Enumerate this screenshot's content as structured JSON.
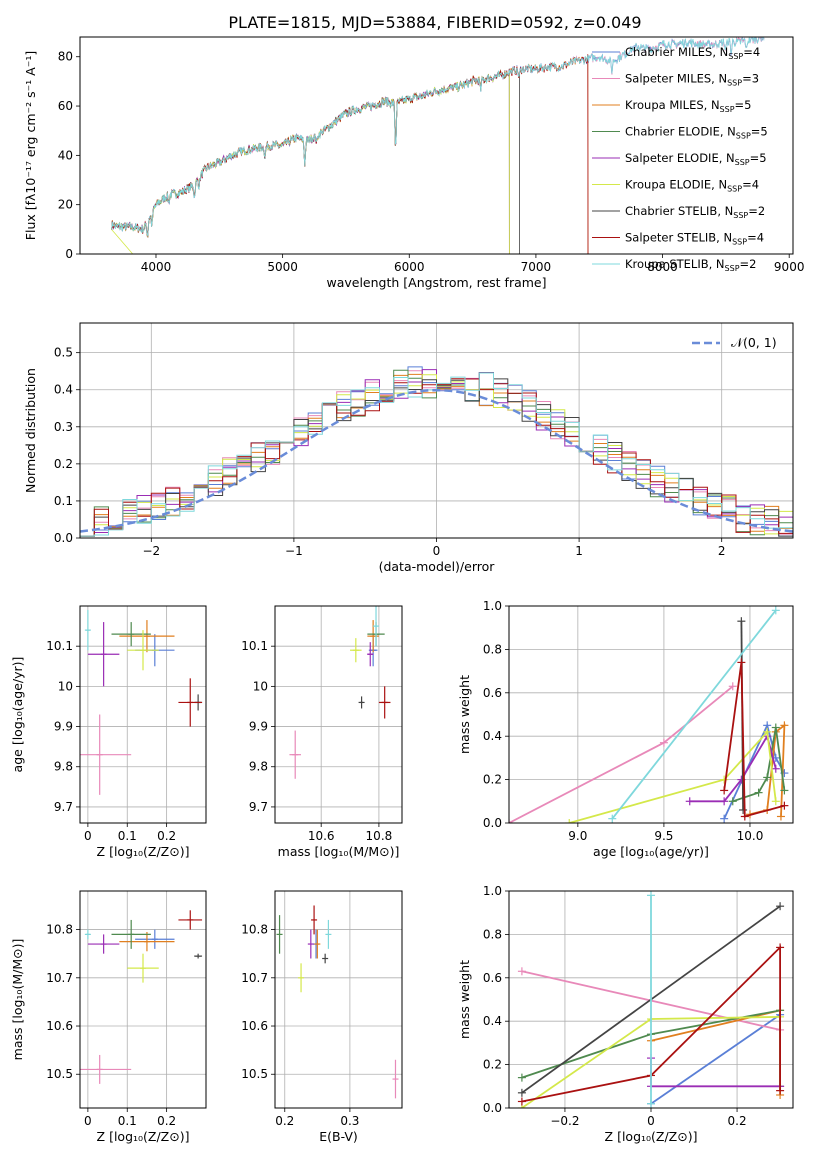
{
  "figure_title": "PLATE=1815, MJD=53884, FIBERID=0592, z=0.049",
  "colors": {
    "models": [
      "#5a7fd6",
      "#e889b9",
      "#e07f1f",
      "#4f8a4f",
      "#9a2db5",
      "#d4e84a",
      "#444444",
      "#aa1111",
      "#7fd8dc"
    ],
    "normal": "#6a8cd8"
  },
  "models": [
    {
      "name": "Chabrier MILES",
      "nssp": "4"
    },
    {
      "name": "Salpeter MILES",
      "nssp": "3"
    },
    {
      "name": "Kroupa MILES",
      "nssp": "5"
    },
    {
      "name": "Chabrier ELODIE",
      "nssp": "5"
    },
    {
      "name": "Salpeter ELODIE",
      "nssp": "5"
    },
    {
      "name": "Kroupa ELODIE",
      "nssp": "4"
    },
    {
      "name": "Chabrier STELIB",
      "nssp": "2"
    },
    {
      "name": "Salpeter STELIB",
      "nssp": "4"
    },
    {
      "name": "Kroupa STELIB",
      "nssp": "2"
    }
  ],
  "legend_nssp_prefix": "N",
  "legend_nssp_sub": "SSP",
  "chart_data": [
    {
      "id": "spectrum",
      "type": "line",
      "xlabel": "wavelength [Angstrom, rest frame]",
      "ylabel": "Flux [fλ10⁻¹⁷ erg cm⁻² s⁻¹ A⁻¹]",
      "xlim": [
        3400,
        9030
      ],
      "ylim": [
        0,
        88
      ],
      "xticks": [
        4000,
        5000,
        6000,
        7000,
        8000,
        9000
      ],
      "yticks": [
        0,
        20,
        40,
        60,
        80
      ],
      "grid": false,
      "legend": "top-right",
      "continuum": [
        [
          3650,
          12
        ],
        [
          3700,
          11
        ],
        [
          3800,
          11
        ],
        [
          3900,
          10
        ],
        [
          3950,
          15
        ],
        [
          4000,
          20
        ],
        [
          4100,
          24
        ],
        [
          4200,
          25
        ],
        [
          4300,
          28
        ],
        [
          4400,
          35
        ],
        [
          4500,
          37
        ],
        [
          4600,
          40
        ],
        [
          4700,
          42
        ],
        [
          4800,
          43
        ],
        [
          4900,
          44
        ],
        [
          5000,
          44
        ],
        [
          5100,
          47
        ],
        [
          5200,
          46
        ],
        [
          5300,
          49
        ],
        [
          5400,
          53
        ],
        [
          5500,
          57
        ],
        [
          5600,
          59
        ],
        [
          5700,
          60
        ],
        [
          5800,
          62
        ],
        [
          5900,
          61
        ],
        [
          6000,
          63
        ],
        [
          6100,
          64
        ],
        [
          6200,
          66
        ],
        [
          6300,
          67
        ],
        [
          6400,
          68
        ],
        [
          6500,
          70
        ],
        [
          6600,
          71
        ],
        [
          6700,
          72
        ],
        [
          6800,
          74
        ],
        [
          6900,
          75
        ],
        [
          7000,
          75
        ],
        [
          7100,
          76
        ],
        [
          7200,
          76
        ],
        [
          7300,
          78
        ],
        [
          7400,
          79
        ],
        [
          7500,
          80
        ],
        [
          7600,
          78
        ],
        [
          7700,
          81
        ],
        [
          7800,
          84
        ],
        [
          7900,
          83
        ],
        [
          8000,
          85
        ],
        [
          8100,
          85
        ],
        [
          8200,
          86
        ],
        [
          8300,
          85
        ],
        [
          8400,
          85
        ],
        [
          8500,
          86
        ],
        [
          8600,
          86
        ],
        [
          8700,
          87
        ],
        [
          8800,
          88
        ]
      ],
      "absorption_lines": [
        [
          3933,
          6
        ],
        [
          3968,
          5
        ],
        [
          4101,
          3
        ],
        [
          4304,
          5
        ],
        [
          4340,
          3
        ],
        [
          4861,
          4
        ],
        [
          5175,
          10
        ],
        [
          5270,
          3
        ],
        [
          5892,
          18
        ],
        [
          6563,
          4
        ],
        [
          6867,
          3
        ],
        [
          7600,
          4
        ],
        [
          8498,
          3
        ],
        [
          8542,
          4
        ],
        [
          8662,
          4
        ]
      ],
      "model_ranges": [
        [
          3650,
          8800
        ],
        [
          3650,
          8800
        ],
        [
          3650,
          7410
        ],
        [
          3650,
          6790
        ],
        [
          3650,
          6790
        ],
        [
          3650,
          6790
        ],
        [
          3650,
          6870
        ],
        [
          3650,
          7410
        ],
        [
          3650,
          8800
        ]
      ]
    },
    {
      "id": "residual-distribution",
      "type": "histogram",
      "xlabel": "(data-model)/error",
      "ylabel": "Normed distribution",
      "xlim": [
        -2.5,
        2.5
      ],
      "ylim": [
        0,
        0.58
      ],
      "xticks": [
        -2,
        -1,
        0,
        1,
        2
      ],
      "yticks": [
        0.0,
        0.1,
        0.2,
        0.3,
        0.4,
        0.5
      ],
      "grid": true,
      "legend": "top-right",
      "reference": {
        "label": "𝒩(0, 1)",
        "mean": 0,
        "sigma": 1
      },
      "bin_width": 0.1
    },
    {
      "id": "age-vs-Z",
      "type": "scatter",
      "xlabel": "Z [log₁₀(Z/Z⊙)]",
      "ylabel": "age  [log₁₀(age/yr)]",
      "xlim": [
        -0.02,
        0.3
      ],
      "ylim": [
        9.66,
        10.2
      ],
      "xticks": [
        0.0,
        0.1,
        0.2
      ],
      "yticks": [
        9.7,
        9.8,
        9.9,
        10.0,
        10.1
      ],
      "points": [
        {
          "model": 0,
          "x": 0.17,
          "y": 10.09,
          "xerr": 0.05,
          "yerr": 0.04
        },
        {
          "model": 1,
          "x": 0.03,
          "y": 9.83,
          "xerr": 0.08,
          "yerr": 0.1
        },
        {
          "model": 2,
          "x": 0.15,
          "y": 10.125,
          "xerr": 0.07,
          "yerr": 0.04
        },
        {
          "model": 3,
          "x": 0.11,
          "y": 10.13,
          "xerr": 0.05,
          "yerr": 0.03
        },
        {
          "model": 4,
          "x": 0.04,
          "y": 10.08,
          "xerr": 0.04,
          "yerr": 0.08
        },
        {
          "model": 5,
          "x": 0.14,
          "y": 10.09,
          "xerr": 0.04,
          "yerr": 0.05
        },
        {
          "model": 6,
          "x": 0.28,
          "y": 9.96,
          "xerr": 0.01,
          "yerr": 0.02
        },
        {
          "model": 7,
          "x": 0.26,
          "y": 9.96,
          "xerr": 0.03,
          "yerr": 0.06
        },
        {
          "model": 8,
          "x": 0.0,
          "y": 10.14,
          "xerr": 0.005,
          "yerr": 0.05
        }
      ]
    },
    {
      "id": "age-vs-mass",
      "type": "scatter",
      "xlabel": "mass [log₁₀(M/M⊙)]",
      "ylabel": "",
      "xlim": [
        10.44,
        10.88
      ],
      "ylim": [
        9.66,
        10.2
      ],
      "xticks": [
        10.6,
        10.8
      ],
      "yticks": [
        9.7,
        9.8,
        9.9,
        10.0,
        10.1
      ],
      "points": [
        {
          "model": 0,
          "x": 10.78,
          "y": 10.09,
          "xerr": 0.015,
          "yerr": 0.04
        },
        {
          "model": 1,
          "x": 10.51,
          "y": 9.83,
          "xerr": 0.02,
          "yerr": 0.06
        },
        {
          "model": 2,
          "x": 10.78,
          "y": 10.125,
          "xerr": 0.02,
          "yerr": 0.04
        },
        {
          "model": 3,
          "x": 10.79,
          "y": 10.13,
          "xerr": 0.03,
          "yerr": 0.03
        },
        {
          "model": 4,
          "x": 10.77,
          "y": 10.08,
          "xerr": 0.01,
          "yerr": 0.03
        },
        {
          "model": 5,
          "x": 10.72,
          "y": 10.09,
          "xerr": 0.02,
          "yerr": 0.03
        },
        {
          "model": 6,
          "x": 10.74,
          "y": 9.96,
          "xerr": 0.005,
          "yerr": 0.015
        },
        {
          "model": 7,
          "x": 10.82,
          "y": 9.96,
          "xerr": 0.02,
          "yerr": 0.04
        },
        {
          "model": 8,
          "x": 10.79,
          "y": 10.15,
          "xerr": 0.005,
          "yerr": 0.05
        }
      ]
    },
    {
      "id": "mass-weight-vs-age",
      "type": "line",
      "xlabel": "age  [log₁₀(age/yr)]",
      "ylabel": "mass weight",
      "xlim": [
        8.6,
        10.25
      ],
      "ylim": [
        0,
        1.0
      ],
      "xticks": [
        9.0,
        9.5,
        10.0
      ],
      "yticks": [
        0.0,
        0.2,
        0.4,
        0.6,
        0.8,
        1.0
      ],
      "series": [
        {
          "model": 0,
          "x": [
            9.85,
            10.1,
            10.15,
            10.2
          ],
          "y": [
            0.02,
            0.45,
            0.3,
            0.23
          ]
        },
        {
          "model": 1,
          "x": [
            8.6,
            9.5,
            9.9
          ],
          "y": [
            0.0,
            0.37,
            0.63
          ]
        },
        {
          "model": 2,
          "x": [
            10.0,
            10.1,
            10.15,
            10.2,
            10.18
          ],
          "y": [
            0.04,
            0.06,
            0.42,
            0.45,
            0.03
          ]
        },
        {
          "model": 3,
          "x": [
            9.9,
            10.05,
            10.1,
            10.15,
            10.2
          ],
          "y": [
            0.1,
            0.14,
            0.21,
            0.44,
            0.15
          ]
        },
        {
          "model": 4,
          "x": [
            9.65,
            9.85,
            9.95,
            10.1,
            10.15
          ],
          "y": [
            0.1,
            0.1,
            0.2,
            0.4,
            0.25
          ]
        },
        {
          "model": 5,
          "x": [
            8.95,
            9.85,
            10.1,
            10.15
          ],
          "y": [
            0.0,
            0.2,
            0.42,
            0.1
          ]
        },
        {
          "model": 6,
          "x": [
            9.95,
            9.96
          ],
          "y": [
            0.93,
            0.06
          ]
        },
        {
          "model": 7,
          "x": [
            9.85,
            9.95,
            9.97,
            10.2
          ],
          "y": [
            0.15,
            0.74,
            0.03,
            0.08
          ]
        },
        {
          "model": 8,
          "x": [
            9.2,
            10.15
          ],
          "y": [
            0.02,
            0.98
          ]
        }
      ]
    },
    {
      "id": "mass-vs-Z",
      "type": "scatter",
      "xlabel": "Z [log₁₀(Z/Z⊙)]",
      "ylabel": "mass [log₁₀(M/M⊙)]",
      "xlim": [
        -0.02,
        0.3
      ],
      "ylim": [
        10.43,
        10.88
      ],
      "xticks": [
        0.0,
        0.1,
        0.2
      ],
      "yticks": [
        10.5,
        10.6,
        10.7,
        10.8
      ],
      "points": [
        {
          "model": 0,
          "x": 0.17,
          "y": 10.78,
          "xerr": 0.05,
          "yerr": 0.02
        },
        {
          "model": 1,
          "x": 0.03,
          "y": 10.51,
          "xerr": 0.08,
          "yerr": 0.03
        },
        {
          "model": 2,
          "x": 0.15,
          "y": 10.775,
          "xerr": 0.07,
          "yerr": 0.02
        },
        {
          "model": 3,
          "x": 0.11,
          "y": 10.79,
          "xerr": 0.05,
          "yerr": 0.03
        },
        {
          "model": 4,
          "x": 0.04,
          "y": 10.77,
          "xerr": 0.04,
          "yerr": 0.02
        },
        {
          "model": 5,
          "x": 0.14,
          "y": 10.72,
          "xerr": 0.04,
          "yerr": 0.03
        },
        {
          "model": 6,
          "x": 0.28,
          "y": 10.745,
          "xerr": 0.01,
          "yerr": 0.005
        },
        {
          "model": 7,
          "x": 0.26,
          "y": 10.82,
          "xerr": 0.03,
          "yerr": 0.02
        },
        {
          "model": 8,
          "x": 0.0,
          "y": 10.79,
          "xerr": 0.005,
          "yerr": 0.01
        }
      ]
    },
    {
      "id": "mass-vs-EBV",
      "type": "scatter",
      "xlabel": "E(B-V)",
      "ylabel": "",
      "xlim": [
        0.185,
        0.38
      ],
      "ylim": [
        10.43,
        10.88
      ],
      "xticks": [
        0.2,
        0.3
      ],
      "yticks": [
        10.5,
        10.6,
        10.7,
        10.8
      ],
      "points": [
        {
          "model": 0,
          "x": 0.248,
          "y": 10.77,
          "xerr": 0.0,
          "yerr": 0.03
        },
        {
          "model": 1,
          "x": 0.37,
          "y": 10.49,
          "xerr": 0.0,
          "yerr": 0.04
        },
        {
          "model": 2,
          "x": 0.25,
          "y": 10.77,
          "xerr": 0.0,
          "yerr": 0.03
        },
        {
          "model": 3,
          "x": 0.192,
          "y": 10.79,
          "xerr": 0.0,
          "yerr": 0.04
        },
        {
          "model": 4,
          "x": 0.24,
          "y": 10.77,
          "xerr": 0.0,
          "yerr": 0.03
        },
        {
          "model": 5,
          "x": 0.225,
          "y": 10.7,
          "xerr": 0.0,
          "yerr": 0.03
        },
        {
          "model": 6,
          "x": 0.262,
          "y": 10.74,
          "xerr": 0.0,
          "yerr": 0.01
        },
        {
          "model": 7,
          "x": 0.245,
          "y": 10.82,
          "xerr": 0.0,
          "yerr": 0.03
        },
        {
          "model": 8,
          "x": 0.267,
          "y": 10.79,
          "xerr": 0.0,
          "yerr": 0.03
        }
      ]
    },
    {
      "id": "mass-weight-vs-Z",
      "type": "line",
      "xlabel": "Z [log₁₀(Z/Z⊙)]",
      "ylabel": "mass weight",
      "xlim": [
        -0.33,
        0.33
      ],
      "ylim": [
        0,
        1.0
      ],
      "xticks": [
        -0.2,
        0.0,
        0.2
      ],
      "yticks": [
        0.0,
        0.2,
        0.4,
        0.6,
        0.8,
        1.0
      ],
      "series": [
        {
          "model": 0,
          "x": [
            0.0,
            0.3
          ],
          "y": [
            0.02,
            0.43
          ]
        },
        {
          "model": 1,
          "x": [
            -0.3,
            0.3
          ],
          "y": [
            0.63,
            0.36
          ]
        },
        {
          "model": 2,
          "x": [
            0.0,
            0.3,
            0.3
          ],
          "y": [
            0.31,
            0.45,
            0.06
          ]
        },
        {
          "model": 3,
          "x": [
            -0.3,
            0.0,
            0.3,
            0.3
          ],
          "y": [
            0.14,
            0.34,
            0.45,
            0.1
          ]
        },
        {
          "model": 4,
          "x": [
            0.0,
            0.0,
            0.3
          ],
          "y": [
            0.23,
            0.1,
            0.1
          ]
        },
        {
          "model": 5,
          "x": [
            -0.3,
            0.0,
            0.3
          ],
          "y": [
            0.0,
            0.41,
            0.42
          ]
        },
        {
          "model": 6,
          "x": [
            -0.3,
            0.3
          ],
          "y": [
            0.07,
            0.93
          ]
        },
        {
          "model": 7,
          "x": [
            -0.3,
            0.0,
            0.3,
            0.3
          ],
          "y": [
            0.03,
            0.15,
            0.74,
            0.08
          ]
        },
        {
          "model": 8,
          "x": [
            0.0,
            0.0
          ],
          "y": [
            0.02,
            0.98
          ]
        }
      ]
    }
  ]
}
